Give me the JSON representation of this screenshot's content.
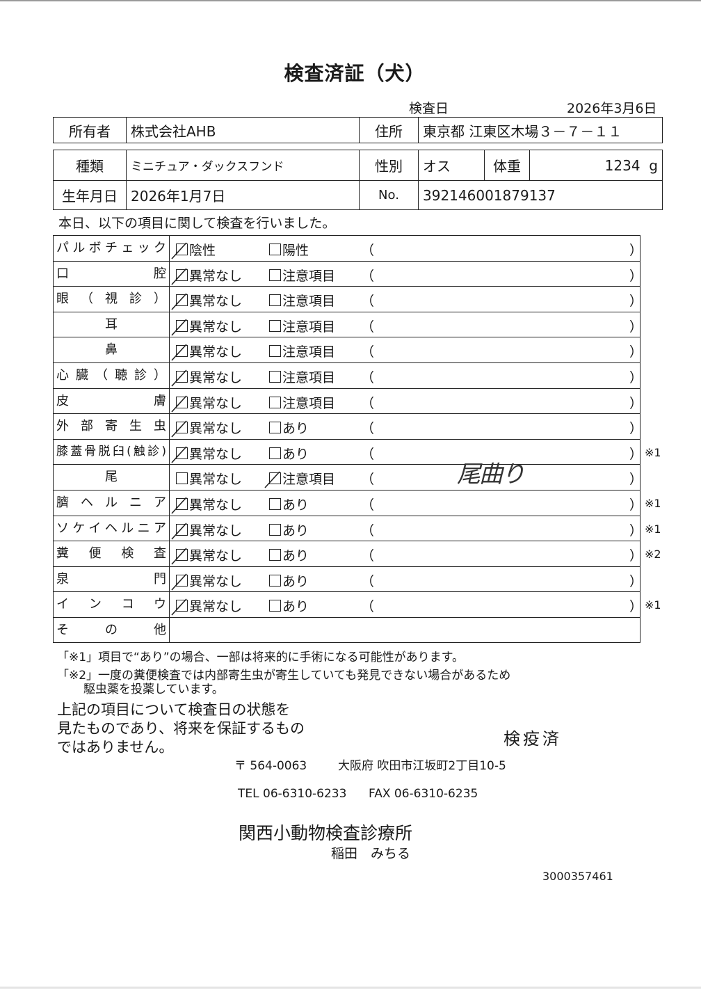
{
  "title": "検査済証（犬）",
  "exam_date_label": "検査日",
  "exam_date": "2026年3月6日",
  "owner": {
    "label": "所有者",
    "value": "株式会社AHB"
  },
  "address": {
    "label": "住所",
    "value": "東京都 江東区木場３－７－１１"
  },
  "breed": {
    "label": "種類",
    "value": "ミニチュア・ダックスフンド"
  },
  "sex": {
    "label": "性別",
    "value": "オス"
  },
  "weight": {
    "label": "体重",
    "value": "1234",
    "unit": "g"
  },
  "birthdate": {
    "label": "生年月日",
    "value": "2026年1月7日"
  },
  "number": {
    "label": "No.",
    "value": "392146001879137"
  },
  "intro": "本日、以下の項目に関して検査を行いました。",
  "paren_open": "（",
  "paren_close": "）",
  "checks": [
    {
      "label": "パルボチェック",
      "opt1": "陰性",
      "opt2": "陽性",
      "checked": 1,
      "mark": "",
      "note": ""
    },
    {
      "label": "口腔",
      "opt1": "異常なし",
      "opt2": "注意項目",
      "checked": 1,
      "mark": "",
      "note": ""
    },
    {
      "label": "眼（視診）",
      "opt1": "異常なし",
      "opt2": "注意項目",
      "checked": 1,
      "mark": "",
      "note": ""
    },
    {
      "label": "耳",
      "opt1": "異常なし",
      "opt2": "注意項目",
      "checked": 1,
      "mark": "",
      "note": ""
    },
    {
      "label": "鼻",
      "opt1": "異常なし",
      "opt2": "注意項目",
      "checked": 1,
      "mark": "",
      "note": ""
    },
    {
      "label": "心臓（聴診）",
      "opt1": "異常なし",
      "opt2": "注意項目",
      "checked": 1,
      "mark": "",
      "note": ""
    },
    {
      "label": "皮膚",
      "opt1": "異常なし",
      "opt2": "注意項目",
      "checked": 1,
      "mark": "",
      "note": ""
    },
    {
      "label": "外部寄生虫",
      "opt1": "異常なし",
      "opt2": "あり",
      "checked": 1,
      "mark": "",
      "note": ""
    },
    {
      "label": "膝蓋骨脱臼(触診)",
      "opt1": "異常なし",
      "opt2": "あり",
      "checked": 1,
      "mark": "※1",
      "note": "",
      "nospace": true
    },
    {
      "label": "尾",
      "opt1": "異常なし",
      "opt2": "注意項目",
      "checked": 2,
      "mark": "",
      "note": "尾曲り"
    },
    {
      "label": "臍ヘルニア",
      "opt1": "異常なし",
      "opt2": "あり",
      "checked": 1,
      "mark": "※1",
      "note": ""
    },
    {
      "label": "ソケイヘルニア",
      "opt1": "異常なし",
      "opt2": "あり",
      "checked": 1,
      "mark": "※1",
      "note": ""
    },
    {
      "label": "糞便検査",
      "opt1": "異常なし",
      "opt2": "あり",
      "checked": 1,
      "mark": "※2",
      "note": ""
    },
    {
      "label": "泉門",
      "opt1": "異常なし",
      "opt2": "あり",
      "checked": 1,
      "mark": "",
      "note": ""
    },
    {
      "label": "インコウ",
      "opt1": "異常なし",
      "opt2": "あり",
      "checked": 1,
      "mark": "※1",
      "note": ""
    },
    {
      "label": "その他",
      "other": true
    }
  ],
  "footnotes": [
    "「※1」項目で“あり”の場合、一部は将来的に手術になる可能性があります。",
    "「※2」一度の糞便検査では内部寄生虫が寄生していても発見できない場合があるため",
    "駆虫薬を投薬しています。"
  ],
  "disclaimer": [
    "上記の項目について検査日の状態を",
    "見たものであり、将来を保証するもの",
    "ではありません。"
  ],
  "stamp": "検疫済",
  "clinic": {
    "postal": "〒 564-0063",
    "address": "大阪府 吹田市江坂町2丁目10-5",
    "tel": "TEL 06-6310-6233",
    "fax": "FAX 06-6310-6235",
    "name": "関西小動物検査診療所",
    "vet": "稲田　みちる"
  },
  "serial": "3000357461"
}
